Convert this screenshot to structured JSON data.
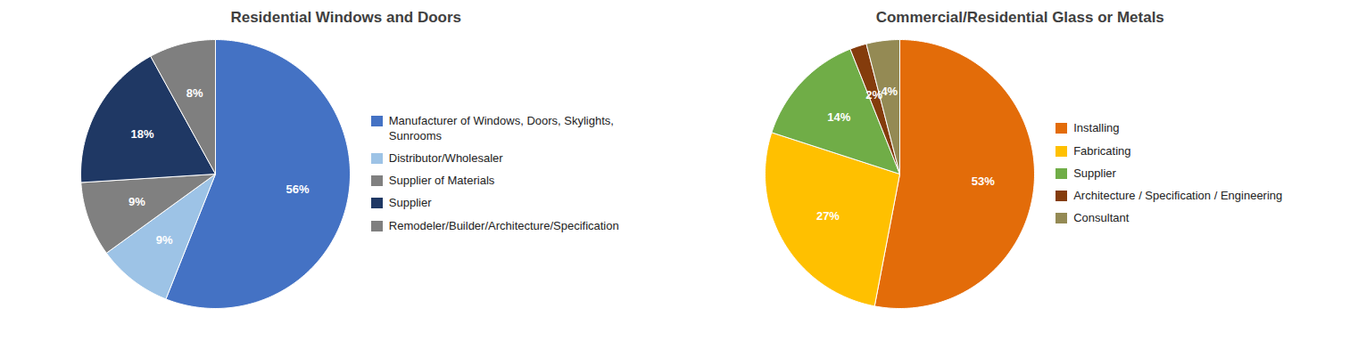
{
  "chart_data": [
    {
      "type": "pie",
      "title": "Residential Windows and Doors",
      "categories": [
        "Manufacturer of Windows, Doors, Skylights,\nSunrooms",
        "Distributor/Wholesaler",
        "Supplier of Materials",
        "Supplier",
        "Remodeler/Builder/Architecture/Specification"
      ],
      "values": [
        56,
        9,
        9,
        18,
        8
      ],
      "value_labels": [
        "56%",
        "9%",
        "9%",
        "18%",
        "8%"
      ],
      "colors": [
        "#4472C4",
        "#9DC3E6",
        "#808080",
        "#1F3864",
        "#7F7F7F"
      ],
      "data_labels": true,
      "legend": "right"
    },
    {
      "type": "pie",
      "title": "Commercial/Residential Glass or Metals",
      "categories": [
        "Installing",
        "Fabricating",
        "Supplier",
        "Architecture / Specification / Engineering",
        "Consultant"
      ],
      "values": [
        53,
        27,
        14,
        2,
        4
      ],
      "value_labels": [
        "53%",
        "27%",
        "14%",
        "2%",
        "4%"
      ],
      "colors": [
        "#E36C09",
        "#FFC000",
        "#70AD47",
        "#843C0C",
        "#948A54"
      ],
      "data_labels": true,
      "legend": "right"
    }
  ]
}
